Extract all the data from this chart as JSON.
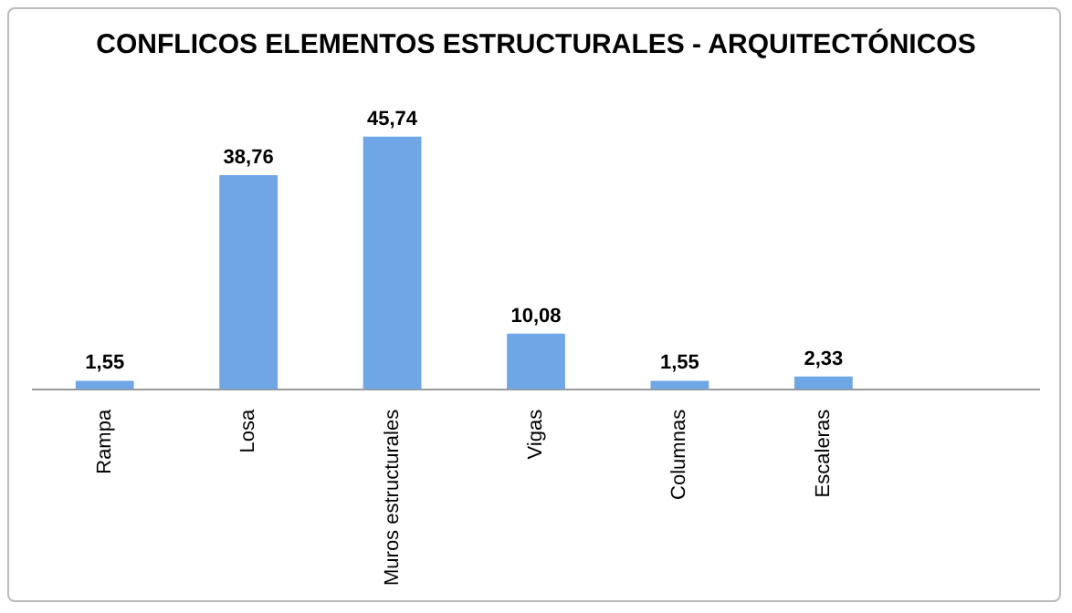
{
  "chart_data": {
    "type": "bar",
    "title": "CONFLICOS ELEMENTOS ESTRUCTURALES - ARQUITECTÓNICOS",
    "categories": [
      "Rampa",
      "Losa",
      "Muros estructurales",
      "Vigas",
      "Columnas",
      "Escaleras",
      null
    ],
    "values": [
      1.55,
      38.76,
      45.74,
      10.08,
      1.55,
      2.33,
      null
    ],
    "value_labels": [
      "1,55",
      "38,76",
      "45,74",
      "10,08",
      "1,55",
      "2,33",
      null
    ],
    "color": "#6ea6e6",
    "grid": false,
    "tick_labels": "x"
  }
}
